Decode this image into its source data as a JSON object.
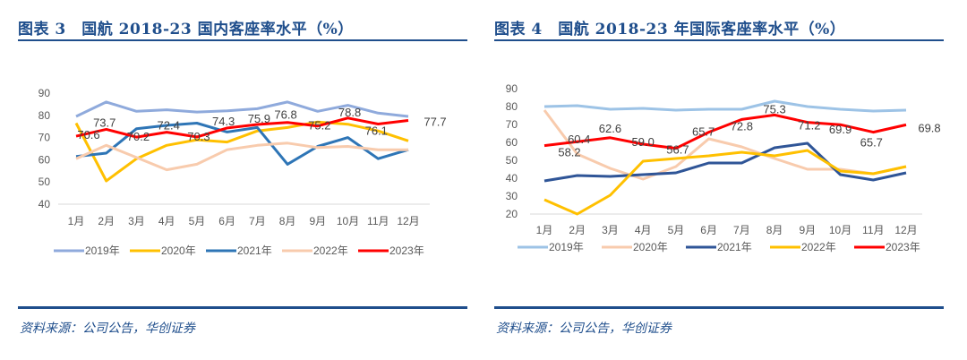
{
  "charts": [
    {
      "title": "图表 3　国航 2018-23 国内客座率水平（%）",
      "source": "资料来源：公司公告，华创证券"
    },
    {
      "title": "图表 4　国航 2018-23 年国际客座率水平（%）",
      "source": "资料来源：公司公告，华创证券"
    }
  ],
  "chart_data": [
    {
      "type": "line",
      "title": "国航 2018-23 国内客座率水平（%）",
      "xlabel": "",
      "ylabel": "",
      "categories": [
        "1月",
        "2月",
        "3月",
        "4月",
        "5月",
        "6月",
        "7月",
        "8月",
        "9月",
        "10月",
        "11月",
        "12月"
      ],
      "ylim": [
        40,
        90
      ],
      "yticks": [
        40,
        50,
        60,
        70,
        80,
        90
      ],
      "grid": false,
      "legend": "bottom",
      "series": [
        {
          "name": "2019年",
          "color": "#8faadc",
          "values": [
            79.5,
            86.0,
            81.8,
            82.5,
            81.5,
            82.0,
            83.0,
            86.0,
            81.8,
            84.5,
            81.0,
            79.5
          ]
        },
        {
          "name": "2020年",
          "color": "#ffc000",
          "values": [
            76.5,
            50.5,
            60.5,
            66.5,
            69.0,
            68.0,
            73.0,
            74.5,
            77.0,
            76.0,
            73.0,
            68.5
          ]
        },
        {
          "name": "2021年",
          "color": "#2e75b6",
          "values": [
            61.5,
            63.0,
            74.0,
            75.5,
            76.5,
            72.5,
            74.5,
            58.0,
            66.0,
            70.0,
            60.5,
            64.5
          ]
        },
        {
          "name": "2022年",
          "color": "#f8cbad",
          "values": [
            60.5,
            66.5,
            61.0,
            55.5,
            58.0,
            64.5,
            66.5,
            67.5,
            65.5,
            66.0,
            64.5,
            64.5
          ]
        },
        {
          "name": "2023年",
          "color": "#ff0000",
          "values": [
            70.6,
            73.7,
            70.2,
            72.4,
            70.3,
            74.3,
            75.9,
            76.8,
            75.2,
            78.8,
            76.1,
            77.7
          ],
          "labels": [
            "70.6",
            "73.7",
            "70.2",
            "72.4",
            "70.3",
            "74.3",
            "75.9",
            "76.8",
            "75.2",
            "78.8",
            "76.1",
            "77.7"
          ]
        }
      ]
    },
    {
      "type": "line",
      "title": "国航 2018-23 年国际客座率水平（%）",
      "xlabel": "",
      "ylabel": "",
      "categories": [
        "1月",
        "2月",
        "3月",
        "4月",
        "5月",
        "6月",
        "7月",
        "8月",
        "9月",
        "10月",
        "11月",
        "12月"
      ],
      "ylim": [
        20,
        90
      ],
      "yticks": [
        20,
        30,
        40,
        50,
        60,
        70,
        80,
        90
      ],
      "grid": false,
      "legend": "bottom",
      "series": [
        {
          "name": "2019年",
          "color": "#9dc3e6",
          "values": [
            80.0,
            80.5,
            78.5,
            79.0,
            78.0,
            78.5,
            78.5,
            83.0,
            80.0,
            78.5,
            77.5,
            78.0
          ]
        },
        {
          "name": "2020年",
          "color": "#f8cbad",
          "values": [
            78.0,
            53.5,
            45.5,
            39.5,
            46.5,
            62.0,
            57.5,
            51.0,
            45.0,
            45.0,
            42.5,
            46.5
          ]
        },
        {
          "name": "2021年",
          "color": "#2f5597",
          "values": [
            38.5,
            41.5,
            41.0,
            42.0,
            43.0,
            48.5,
            48.5,
            57.0,
            59.5,
            42.0,
            39.0,
            43.0
          ]
        },
        {
          "name": "2022年",
          "color": "#ffc000",
          "values": [
            28.0,
            20.0,
            30.5,
            49.5,
            51.0,
            52.5,
            54.5,
            52.5,
            55.5,
            44.0,
            42.5,
            46.5
          ]
        },
        {
          "name": "2023年",
          "color": "#ff0000",
          "values": [
            58.2,
            60.4,
            62.6,
            59.0,
            56.7,
            65.7,
            72.8,
            75.3,
            71.2,
            69.9,
            65.7,
            69.8
          ],
          "labels": [
            "58.2",
            "60.4",
            "62.6",
            "59.0",
            "56.7",
            "65.7",
            "72.8",
            "75.3",
            "71.2",
            "69.9",
            "65.7",
            "69.8"
          ]
        }
      ]
    }
  ]
}
